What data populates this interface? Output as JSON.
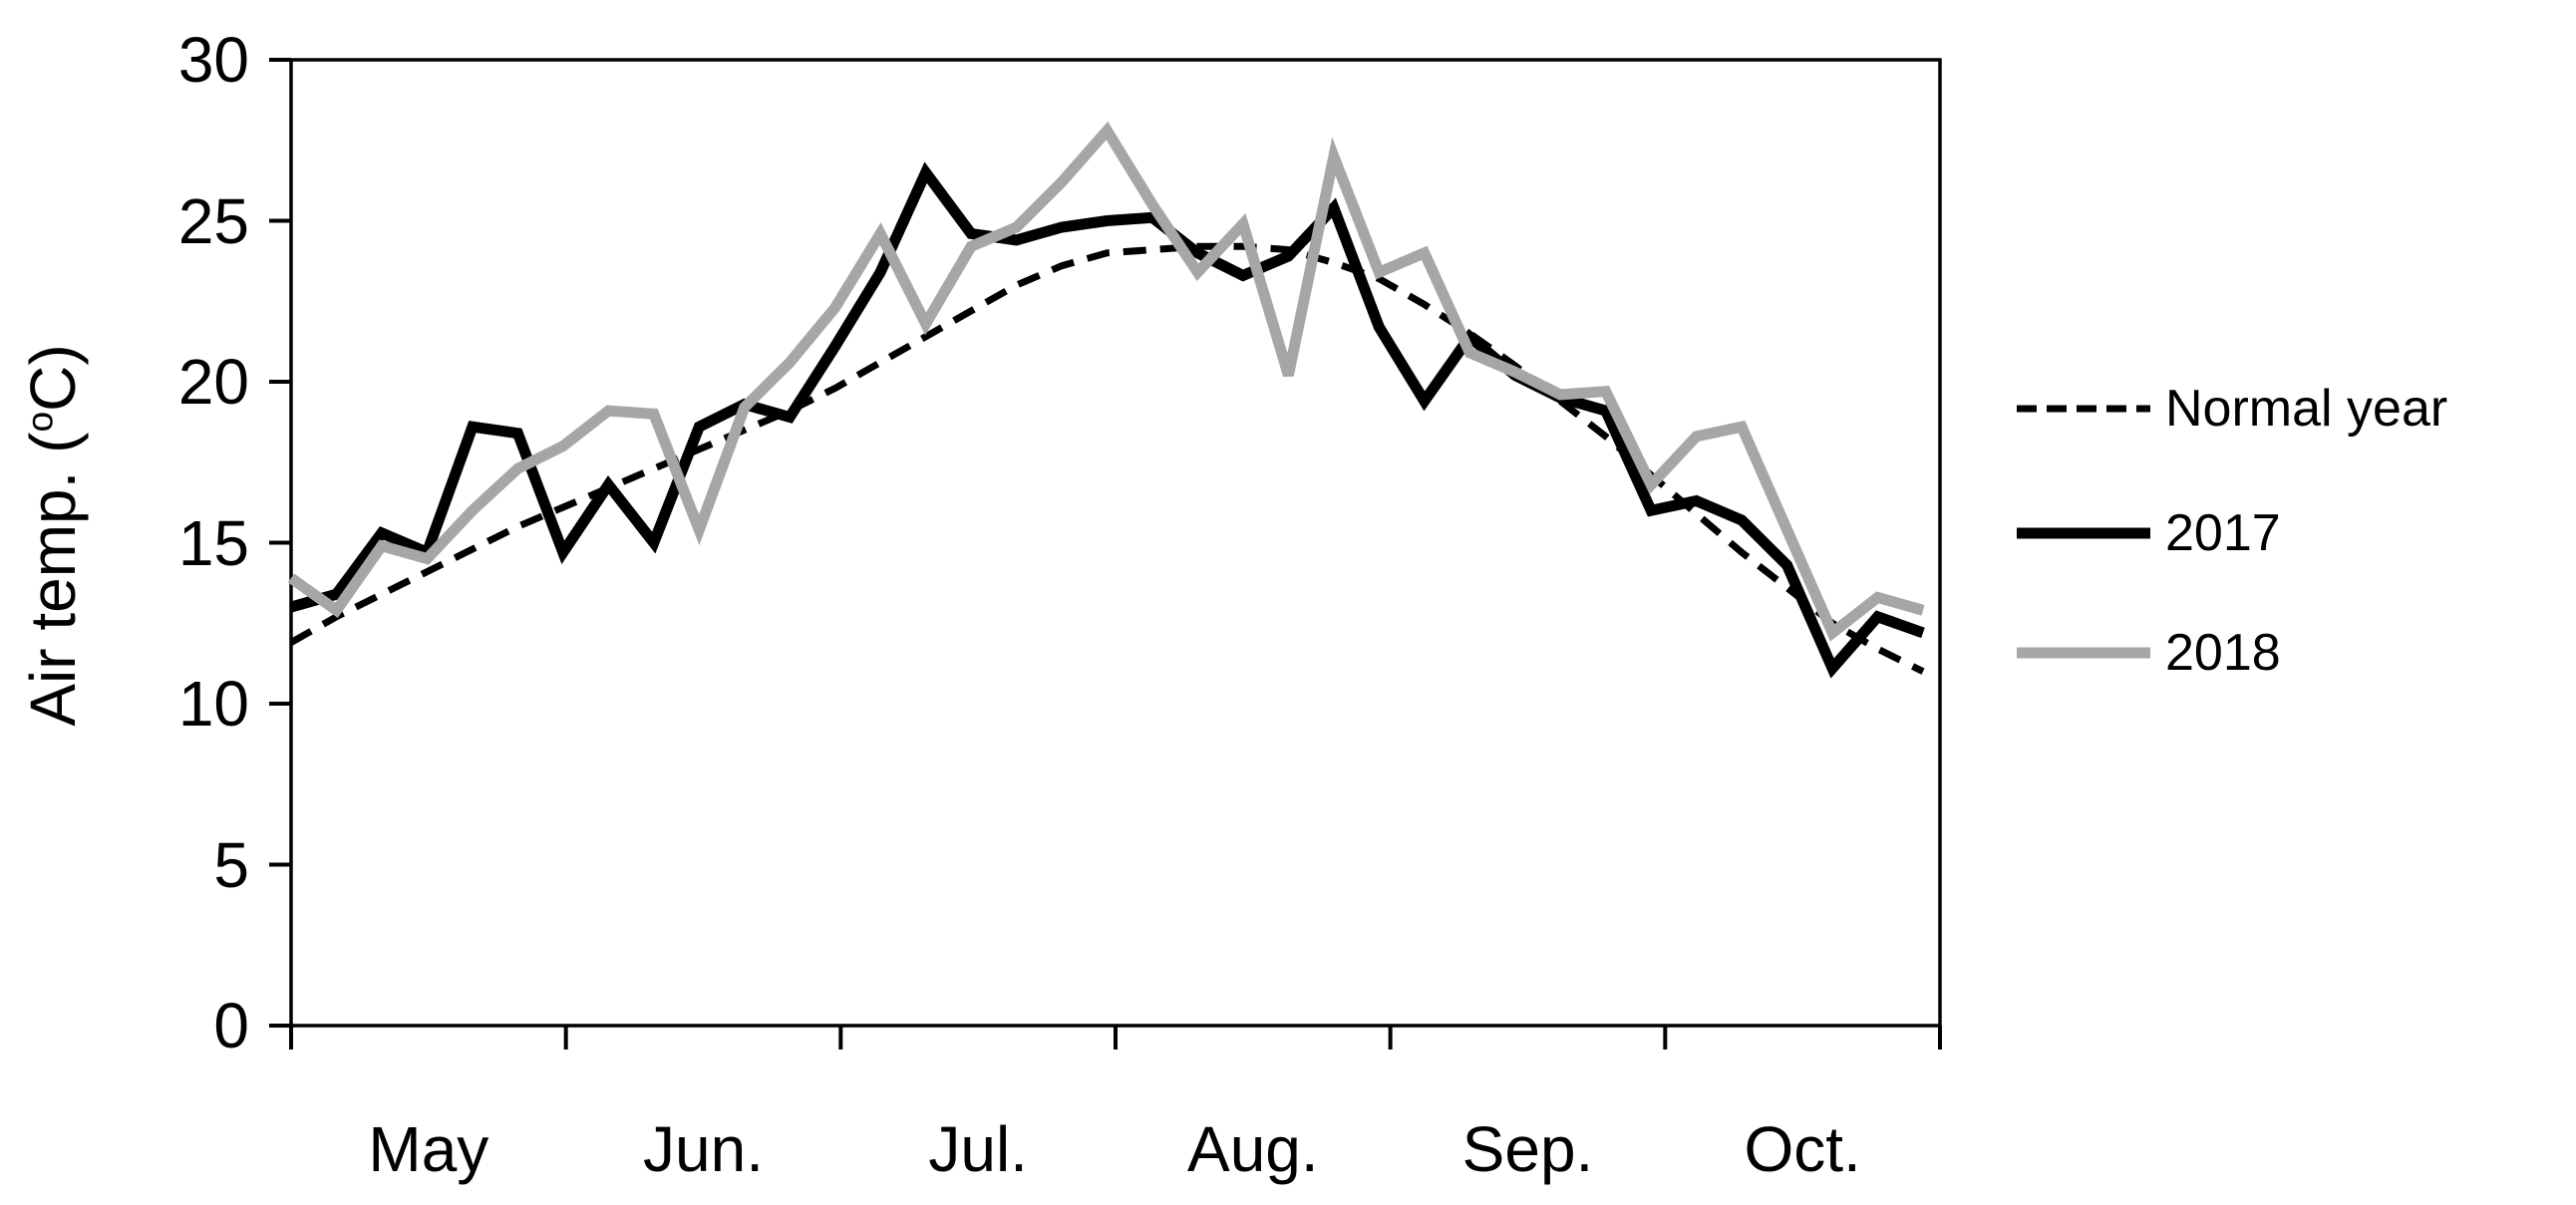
{
  "figure": {
    "background": "#ffffff",
    "accent_black": "#000000",
    "accent_gray": "#a6a6a6"
  },
  "y_axis": {
    "title_prefix": "Air temp. (",
    "degree_symbol": "o",
    "title_suffix": "C)"
  },
  "chart_data": {
    "type": "line",
    "title": "",
    "xlabel": "",
    "ylabel": "Air temp. (°C)",
    "ylim": [
      0,
      30
    ],
    "yticks": [
      0,
      5,
      10,
      15,
      20,
      25,
      30
    ],
    "x_months": [
      "May",
      "Jun.",
      "Jul.",
      "Aug.",
      "Sep.",
      "Oct."
    ],
    "grid": false,
    "legend_position": "right-center",
    "series": [
      {
        "name": "Normal year",
        "style": "dashed",
        "color": "#000000",
        "width": 7,
        "values": [
          11.9,
          12.7,
          13.4,
          14.1,
          14.8,
          15.5,
          16.1,
          16.7,
          17.3,
          17.9,
          18.5,
          19.1,
          19.8,
          20.6,
          21.4,
          22.2,
          23.0,
          23.6,
          24.0,
          24.1,
          24.2,
          24.2,
          24.1,
          23.7,
          23.2,
          22.4,
          21.5,
          20.5,
          19.4,
          18.3,
          17.1,
          15.9,
          14.7,
          13.6,
          12.5,
          11.7,
          11.0
        ]
      },
      {
        "name": "2017",
        "style": "solid",
        "color": "#000000",
        "width": 11,
        "values": [
          13.0,
          13.4,
          15.3,
          14.7,
          18.6,
          18.4,
          14.7,
          16.8,
          15.0,
          18.6,
          19.3,
          18.9,
          21.1,
          23.4,
          26.5,
          24.6,
          24.4,
          24.8,
          25.0,
          25.1,
          24.0,
          23.3,
          23.9,
          25.4,
          21.7,
          19.4,
          21.4,
          20.2,
          19.5,
          19.1,
          16.0,
          16.3,
          15.7,
          14.3,
          11.1,
          12.7,
          12.2
        ]
      },
      {
        "name": "2018",
        "style": "solid",
        "color": "#a6a6a6",
        "width": 11,
        "values": [
          13.9,
          12.9,
          14.9,
          14.5,
          16.0,
          17.3,
          18.0,
          19.1,
          19.0,
          15.4,
          19.2,
          20.6,
          22.3,
          24.6,
          21.8,
          24.2,
          24.8,
          26.2,
          27.8,
          25.5,
          23.4,
          24.9,
          20.2,
          27.0,
          23.4,
          24.0,
          20.9,
          20.3,
          19.6,
          19.7,
          16.8,
          18.3,
          18.6,
          15.4,
          12.2,
          13.3,
          12.9
        ]
      }
    ]
  }
}
